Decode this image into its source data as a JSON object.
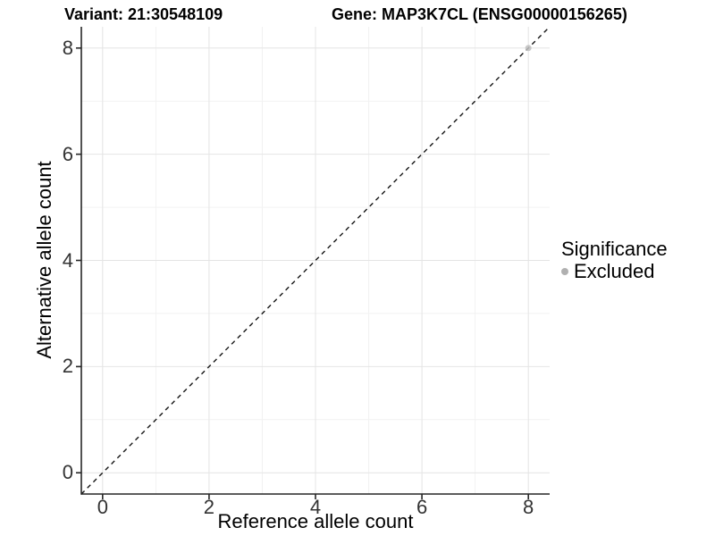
{
  "chart_data": {
    "type": "scatter",
    "titles": [
      "Variant: 21:30548109",
      "Gene: MAP3K7CL (ENSG00000156265)"
    ],
    "xlabel": "Reference allele count",
    "ylabel": "Alternative allele count",
    "xlim": [
      -0.4,
      8.4
    ],
    "ylim": [
      -0.4,
      8.4
    ],
    "x_ticks": [
      0,
      2,
      4,
      6,
      8
    ],
    "y_ticks": [
      0,
      2,
      4,
      6,
      8
    ],
    "x_minor_ticks": [
      1,
      3,
      5,
      7
    ],
    "y_minor_ticks": [
      1,
      3,
      5,
      7
    ],
    "grid": "major+minor",
    "reference_line": {
      "kind": "identity",
      "slope": 1,
      "intercept": 0,
      "style": "dashed"
    },
    "series": [
      {
        "name": "Excluded",
        "marker": "circle",
        "color": "#bfbfbf",
        "points": [
          [
            8,
            8
          ]
        ]
      }
    ],
    "legend": {
      "title": "Significance",
      "position": "right",
      "entries": [
        {
          "label": "Excluded",
          "color": "#b0b0b0"
        }
      ]
    }
  },
  "colors": {
    "background": "#ffffff",
    "axis_line": "#262626",
    "tick_mark": "#262626",
    "grid_major": "#e4e4e4",
    "grid_minor": "#f2f2f2",
    "identity_line": "#141414",
    "tick_label": "#333333",
    "point_fill": "#bfbfbf",
    "legend_dot": "#b0b0b0"
  }
}
